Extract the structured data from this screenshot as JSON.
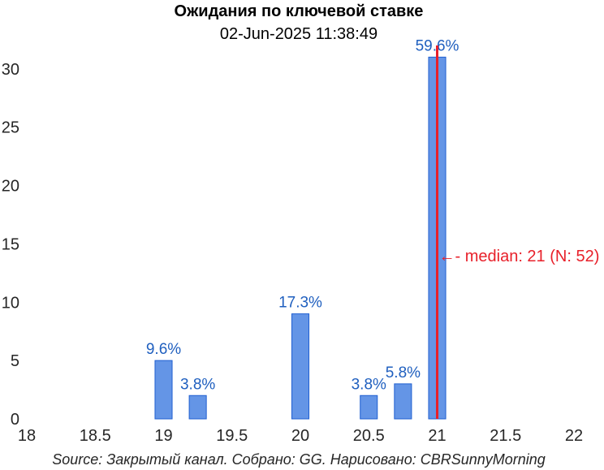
{
  "chart_data": {
    "type": "bar",
    "title": "Ожидания по ключевой ставке",
    "subtitle": "02-Jun-2025 11:38:49",
    "xlabel": "",
    "ylabel": "",
    "xlim": [
      18,
      22
    ],
    "ylim": [
      0,
      32
    ],
    "xticks": [
      "18",
      "18.5",
      "19",
      "19.5",
      "20",
      "20.5",
      "21",
      "21.5",
      "22"
    ],
    "yticks": [
      "0",
      "5",
      "10",
      "15",
      "20",
      "25",
      "30"
    ],
    "bin_width": 0.125,
    "bars": [
      {
        "x": 19.0,
        "value": 5,
        "label": "9.6%"
      },
      {
        "x": 19.25,
        "value": 2,
        "label": "3.8%"
      },
      {
        "x": 20.0,
        "value": 9,
        "label": "17.3%"
      },
      {
        "x": 20.5,
        "value": 2,
        "label": "3.8%"
      },
      {
        "x": 20.75,
        "value": 3,
        "label": "5.8%"
      },
      {
        "x": 21.0,
        "value": 31,
        "label": "59.6%"
      }
    ],
    "median": {
      "x": 21,
      "label": "←- median: 21 (N: 52)"
    },
    "source": "Source: Закрытый канал. Собрано: GG. Нарисовано: CBRSunnyMorning",
    "grid": false,
    "legend": "none",
    "colors": {
      "bar_fill": "#6495e6",
      "bar_stroke": "#1f5fd1",
      "label": "#1f5fbf",
      "median": "#e8202a",
      "text": "#262626"
    }
  }
}
